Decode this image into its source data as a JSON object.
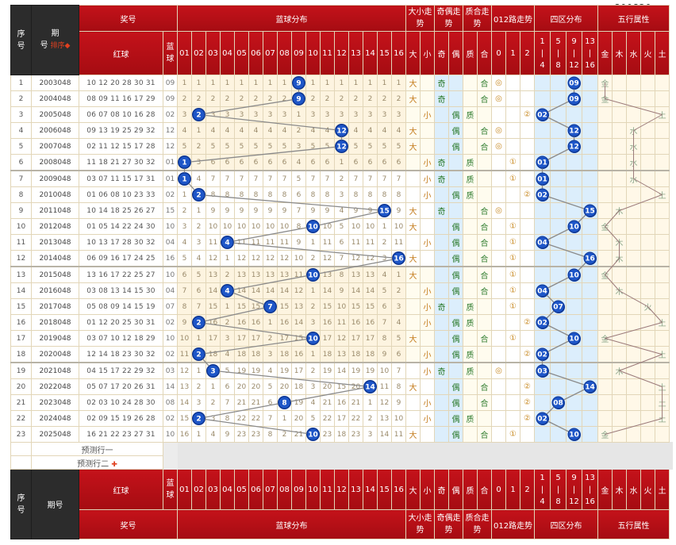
{
  "watermark": "800820. NET",
  "header": {
    "seq": "序号",
    "period": "期号",
    "sort": "排序",
    "prize": "奖号",
    "blue_dist": "蓝球分布",
    "size_trend": "大小走势",
    "oe_trend": "奇偶走势",
    "pc_trend": "质合走势",
    "r012_trend": "012路走势",
    "zone_dist": "四区分布",
    "wuxing": "五行属性",
    "red_ball": "红球",
    "blue_ball": "蓝球",
    "size_labels": [
      "大",
      "小"
    ],
    "oe_labels": [
      "奇",
      "偶"
    ],
    "pc_labels": [
      "质",
      "合"
    ],
    "r012_labels": [
      "0",
      "1",
      "2"
    ],
    "zone_labels": [
      [
        "1",
        "|",
        "4"
      ],
      [
        "5",
        "|",
        "8"
      ],
      [
        "9",
        "|",
        "12"
      ],
      [
        "13",
        "|",
        "16"
      ]
    ],
    "wx_labels": [
      "金",
      "木",
      "水",
      "火",
      "土"
    ],
    "blue_nums": [
      "01",
      "02",
      "03",
      "04",
      "05",
      "06",
      "07",
      "08",
      "09",
      "10",
      "11",
      "12",
      "13",
      "14",
      "15",
      "16"
    ]
  },
  "rows": [
    {
      "i": "1",
      "p": "2003048",
      "r": "10 12 20 28 30 31",
      "b": "09",
      "omit": [
        "1",
        "1",
        "1",
        "1",
        "1",
        "1",
        "1",
        "1",
        "",
        "1",
        "1",
        "1",
        "1",
        "1",
        "1",
        "1"
      ],
      "sz": "大",
      "oe": "奇",
      "pc": "合",
      "r0": "◎",
      "zone": "09",
      "wx": "金",
      "wxcol": 0,
      "zoneidx": 2
    },
    {
      "i": "2",
      "p": "2004048",
      "r": "08 09 11 16 17 29",
      "b": "09",
      "omit": [
        "2",
        "2",
        "2",
        "2",
        "2",
        "2",
        "2",
        "2",
        "",
        "2",
        "2",
        "2",
        "2",
        "2",
        "2",
        "2"
      ],
      "sz": "大",
      "oe": "奇",
      "pc": "合",
      "r0": "◎",
      "zone": "09",
      "wx": "金",
      "wxcol": 0,
      "zoneidx": 2
    },
    {
      "i": "3",
      "p": "2005048",
      "r": "06 07 08 10 16 28",
      "b": "02",
      "omit": [
        "3",
        "",
        "3",
        "3",
        "3",
        "3",
        "3",
        "3",
        "1",
        "3",
        "3",
        "3",
        "3",
        "3",
        "3",
        "3"
      ],
      "sz": "小",
      "oe": "偶",
      "pc": "质",
      "r2": "②",
      "zone": "02",
      "wx": "土",
      "wxcol": 4,
      "zoneidx": 0
    },
    {
      "i": "4",
      "p": "2006048",
      "r": "09 13 19 25 29 32",
      "b": "12",
      "omit": [
        "4",
        "1",
        "4",
        "4",
        "4",
        "4",
        "4",
        "4",
        "2",
        "4",
        "4",
        "",
        "4",
        "4",
        "4",
        "4"
      ],
      "sz": "大",
      "oe": "偶",
      "pc": "合",
      "r0": "◎",
      "zone": "12",
      "wx": "水",
      "wxcol": 2,
      "zoneidx": 2
    },
    {
      "i": "5",
      "p": "2007048",
      "r": "02 11 12 15 17 28",
      "b": "12",
      "omit": [
        "5",
        "2",
        "5",
        "5",
        "5",
        "5",
        "5",
        "5",
        "3",
        "5",
        "5",
        "",
        "5",
        "5",
        "5",
        "5"
      ],
      "sz": "大",
      "oe": "偶",
      "pc": "合",
      "r0": "◎",
      "zone": "12",
      "wx": "水",
      "wxcol": 2,
      "zoneidx": 2
    },
    {
      "i": "6",
      "p": "2008048",
      "r": "11 18 21 27 30 32",
      "b": "01",
      "omit": [
        "",
        "3",
        "6",
        "6",
        "6",
        "6",
        "6",
        "6",
        "4",
        "6",
        "6",
        "1",
        "6",
        "6",
        "6",
        "6"
      ],
      "sz": "小",
      "oe": "奇",
      "pc": "质",
      "r1": "①",
      "zone": "01",
      "wx": "水",
      "wxcol": 2,
      "zoneidx": 0
    },
    {
      "i": "7",
      "p": "2009048",
      "r": "03 07 11 15 17 31",
      "b": "01",
      "omit": [
        "",
        "4",
        "7",
        "7",
        "7",
        "7",
        "7",
        "7",
        "5",
        "7",
        "7",
        "2",
        "7",
        "7",
        "7",
        "7"
      ],
      "sz": "小",
      "oe": "奇",
      "pc": "质",
      "r1": "①",
      "zone": "01",
      "wx": "水",
      "wxcol": 2,
      "zoneidx": 0
    },
    {
      "i": "8",
      "p": "2010048",
      "r": "01 06 08 10 23 33",
      "b": "02",
      "omit": [
        "1",
        "",
        "8",
        "8",
        "8",
        "8",
        "8",
        "8",
        "6",
        "8",
        "8",
        "3",
        "8",
        "8",
        "8",
        "8"
      ],
      "sz": "小",
      "oe": "偶",
      "pc": "质",
      "r2": "②",
      "zone": "02",
      "wx": "土",
      "wxcol": 4,
      "zoneidx": 0
    },
    {
      "i": "9",
      "p": "2011048",
      "r": "10 14 18 25 26 27",
      "b": "15",
      "omit": [
        "2",
        "1",
        "9",
        "9",
        "9",
        "9",
        "9",
        "9",
        "7",
        "9",
        "9",
        "4",
        "9",
        "9",
        "",
        "9"
      ],
      "sz": "大",
      "oe": "奇",
      "pc": "合",
      "r0": "◎",
      "zone": "15",
      "wx": "木",
      "wxcol": 1,
      "zoneidx": 3
    },
    {
      "i": "10",
      "p": "2012048",
      "r": "01 05 14 22 24 30",
      "b": "10",
      "omit": [
        "3",
        "2",
        "10",
        "10",
        "10",
        "10",
        "10",
        "10",
        "8",
        "",
        "10",
        "5",
        "10",
        "10",
        "1",
        "10"
      ],
      "sz": "大",
      "oe": "偶",
      "pc": "合",
      "r1": "①",
      "zone": "10",
      "wx": "金",
      "wxcol": 0,
      "zoneidx": 2
    },
    {
      "i": "11",
      "p": "2013048",
      "r": "10 13 17 28 30 32",
      "b": "04",
      "omit": [
        "4",
        "3",
        "11",
        "",
        "11",
        "11",
        "11",
        "11",
        "9",
        "1",
        "11",
        "6",
        "11",
        "11",
        "2",
        "11"
      ],
      "sz": "小",
      "oe": "偶",
      "pc": "合",
      "r1": "①",
      "zone": "04",
      "wx": "木",
      "wxcol": 1,
      "zoneidx": 0
    },
    {
      "i": "12",
      "p": "2014048",
      "r": "06 09 16 17 24 25",
      "b": "16",
      "omit": [
        "5",
        "4",
        "12",
        "1",
        "12",
        "12",
        "12",
        "12",
        "10",
        "2",
        "12",
        "7",
        "12",
        "12",
        "3",
        ""
      ],
      "sz": "大",
      "oe": "偶",
      "pc": "合",
      "r1": "①",
      "zone": "16",
      "wx": "木",
      "wxcol": 1,
      "zoneidx": 3
    },
    {
      "i": "13",
      "p": "2015048",
      "r": "13 16 17 22 25 27",
      "b": "10",
      "omit": [
        "6",
        "5",
        "13",
        "2",
        "13",
        "13",
        "13",
        "13",
        "11",
        "",
        "13",
        "8",
        "13",
        "13",
        "4",
        "1"
      ],
      "sz": "大",
      "oe": "偶",
      "pc": "合",
      "r1": "①",
      "zone": "10",
      "wx": "金",
      "wxcol": 0,
      "zoneidx": 2
    },
    {
      "i": "14",
      "p": "2016048",
      "r": "03 08 13 14 15 30",
      "b": "04",
      "omit": [
        "7",
        "6",
        "14",
        "",
        "14",
        "14",
        "14",
        "14",
        "12",
        "1",
        "14",
        "9",
        "14",
        "14",
        "5",
        "2"
      ],
      "sz": "小",
      "oe": "偶",
      "pc": "合",
      "r1": "①",
      "zone": "04",
      "wx": "木",
      "wxcol": 1,
      "zoneidx": 0
    },
    {
      "i": "15",
      "p": "2017048",
      "r": "05 08 09 14 15 19",
      "b": "07",
      "omit": [
        "8",
        "7",
        "15",
        "1",
        "15",
        "15",
        "",
        "15",
        "13",
        "2",
        "15",
        "10",
        "15",
        "15",
        "6",
        "3"
      ],
      "sz": "小",
      "oe": "奇",
      "pc": "质",
      "r1": "①",
      "zone": "07",
      "wx": "火",
      "wxcol": 3,
      "zoneidx": 1
    },
    {
      "i": "16",
      "p": "2018048",
      "r": "01 12 20 25 30 31",
      "b": "02",
      "omit": [
        "9",
        "",
        "16",
        "2",
        "16",
        "16",
        "1",
        "16",
        "14",
        "3",
        "16",
        "11",
        "16",
        "16",
        "7",
        "4"
      ],
      "sz": "小",
      "oe": "偶",
      "pc": "质",
      "r2": "②",
      "zone": "02",
      "wx": "土",
      "wxcol": 4,
      "zoneidx": 0
    },
    {
      "i": "17",
      "p": "2019048",
      "r": "03 07 10 12 18 29",
      "b": "10",
      "omit": [
        "10",
        "1",
        "17",
        "3",
        "17",
        "17",
        "2",
        "17",
        "15",
        "",
        "17",
        "12",
        "17",
        "17",
        "8",
        "5"
      ],
      "sz": "大",
      "oe": "偶",
      "pc": "合",
      "r1": "①",
      "zone": "10",
      "wx": "金",
      "wxcol": 0,
      "zoneidx": 2
    },
    {
      "i": "18",
      "p": "2020048",
      "r": "12 14 18 23 30 32",
      "b": "02",
      "omit": [
        "11",
        "",
        "18",
        "4",
        "18",
        "18",
        "3",
        "18",
        "16",
        "1",
        "18",
        "13",
        "18",
        "18",
        "9",
        "6"
      ],
      "sz": "小",
      "oe": "偶",
      "pc": "质",
      "r2": "②",
      "zone": "02",
      "wx": "土",
      "wxcol": 4,
      "zoneidx": 0
    },
    {
      "i": "19",
      "p": "2021048",
      "r": "04 15 17 22 29 32",
      "b": "03",
      "omit": [
        "12",
        "1",
        "",
        "5",
        "19",
        "19",
        "4",
        "19",
        "17",
        "2",
        "19",
        "14",
        "19",
        "19",
        "10",
        "7"
      ],
      "sz": "小",
      "oe": "奇",
      "pc": "质",
      "r0": "◎",
      "zone": "03",
      "wx": "木",
      "wxcol": 1,
      "zoneidx": 0
    },
    {
      "i": "20",
      "p": "2022048",
      "r": "05 07 17 20 26 31",
      "b": "14",
      "omit": [
        "13",
        "2",
        "1",
        "6",
        "20",
        "20",
        "5",
        "20",
        "18",
        "3",
        "20",
        "15",
        "20",
        "",
        "11",
        "8"
      ],
      "sz": "大",
      "oe": "偶",
      "pc": "合",
      "r2": "②",
      "zone": "14",
      "wx": "土",
      "wxcol": 4,
      "zoneidx": 3
    },
    {
      "i": "21",
      "p": "2023048",
      "r": "02 03 10 24 28 30",
      "b": "08",
      "omit": [
        "14",
        "3",
        "2",
        "7",
        "21",
        "21",
        "6",
        "",
        "19",
        "4",
        "21",
        "16",
        "21",
        "1",
        "12",
        "9"
      ],
      "sz": "小",
      "oe": "偶",
      "pc": "合",
      "r2": "②",
      "zone": "08",
      "wx": "土",
      "wxcol": 4,
      "zoneidx": 1
    },
    {
      "i": "22",
      "p": "2024048",
      "r": "02 09 15 19 26 28",
      "b": "02",
      "omit": [
        "15",
        "",
        "3",
        "8",
        "22",
        "22",
        "7",
        "1",
        "20",
        "5",
        "22",
        "17",
        "22",
        "2",
        "13",
        "10"
      ],
      "sz": "小",
      "oe": "偶",
      "pc": "质",
      "r2": "②",
      "zone": "02",
      "wx": "土",
      "wxcol": 4,
      "zoneidx": 0
    },
    {
      "i": "23",
      "p": "2025048",
      "r": "16 21 22 23 27 31",
      "b": "10",
      "omit": [
        "16",
        "1",
        "4",
        "9",
        "23",
        "23",
        "8",
        "2",
        "21",
        "",
        "23",
        "18",
        "23",
        "3",
        "14",
        "11"
      ],
      "sz": "大",
      "oe": "偶",
      "pc": "合",
      "r1": "①",
      "zone": "10",
      "wx": "金",
      "wxcol": 0,
      "zoneidx": 2
    }
  ],
  "predict": [
    "预测行一",
    "预测行二"
  ]
}
